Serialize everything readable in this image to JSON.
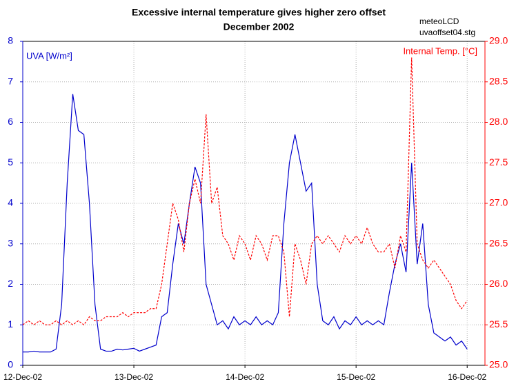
{
  "chart_data": {
    "type": "line",
    "title": "Excessive internal temperature gives higher zero offset",
    "subtitle": "December 2002",
    "annotations": [
      "meteoLCD",
      "uvaoffset04.stg"
    ],
    "ylabel": "UVA [W/m²]",
    "y2label": "Internal Temp. [°C]",
    "grid": true,
    "x": [
      0,
      0.05,
      0.1,
      0.15,
      0.2,
      0.25,
      0.3,
      0.35,
      0.4,
      0.45,
      0.5,
      0.55,
      0.6,
      0.65,
      0.7,
      0.75,
      0.8,
      0.85,
      0.9,
      0.95,
      1,
      1.05,
      1.1,
      1.15,
      1.2,
      1.25,
      1.3,
      1.35,
      1.4,
      1.45,
      1.5,
      1.55,
      1.6,
      1.65,
      1.7,
      1.75,
      1.8,
      1.85,
      1.9,
      1.95,
      2,
      2.05,
      2.1,
      2.15,
      2.2,
      2.25,
      2.3,
      2.35,
      2.4,
      2.45,
      2.5,
      2.55,
      2.6,
      2.65,
      2.7,
      2.75,
      2.8,
      2.85,
      2.9,
      2.95,
      3,
      3.05,
      3.1,
      3.15,
      3.2,
      3.25,
      3.3,
      3.35,
      3.4,
      3.45,
      3.5,
      3.55,
      3.6,
      3.65,
      3.7,
      3.75,
      3.8,
      3.85,
      3.9,
      3.95,
      4
    ],
    "xlim": [
      0,
      4.16
    ],
    "xticks": [
      {
        "value": 0,
        "label": "12-Dec-02"
      },
      {
        "value": 1,
        "label": "13-Dec-02"
      },
      {
        "value": 2,
        "label": "14-Dec-02"
      },
      {
        "value": 3,
        "label": "15-Dec-02"
      },
      {
        "value": 4,
        "label": "16-Dec-02"
      }
    ],
    "ylim": [
      0,
      8
    ],
    "yticks": [
      0,
      1,
      2,
      3,
      4,
      5,
      6,
      7,
      8
    ],
    "y2lim": [
      25,
      29
    ],
    "y2ticks": [
      {
        "value": 25,
        "label": "25.0"
      },
      25.5,
      {
        "value": 26,
        "label": "26.0"
      },
      26.5,
      {
        "value": 27,
        "label": "27.0"
      },
      27.5,
      {
        "value": 28,
        "label": "28.0"
      },
      28.5,
      {
        "value": 29,
        "label": "29.0"
      }
    ],
    "series": [
      {
        "name": "UVA",
        "color": "#0000cc",
        "values": [
          0.33,
          0.33,
          0.35,
          0.33,
          0.33,
          0.33,
          0.4,
          1.5,
          4.5,
          6.7,
          5.8,
          5.7,
          4.0,
          1.5,
          0.4,
          0.35,
          0.35,
          0.4,
          0.38,
          0.4,
          0.42,
          0.35,
          0.4,
          0.45,
          0.5,
          1.2,
          1.3,
          2.5,
          3.5,
          3.0,
          4.0,
          4.9,
          4.5,
          2.0,
          1.5,
          1.0,
          1.1,
          0.9,
          1.2,
          1.0,
          1.1,
          1.0,
          1.2,
          1.0,
          1.1,
          1.0,
          1.3,
          3.5,
          5.0,
          5.7,
          5.0,
          4.3,
          4.5,
          2.0,
          1.1,
          1.0,
          1.2,
          0.9,
          1.1,
          1.0,
          1.2,
          1.0,
          1.1,
          1.0,
          1.1,
          1.0,
          1.8,
          2.5,
          3.0,
          2.3,
          5.0,
          2.5,
          3.5,
          1.5,
          0.8,
          0.7,
          0.6,
          0.7,
          0.5,
          0.6,
          0.4
        ]
      },
      {
        "name": "Internal Temp.",
        "color": "#ff0000",
        "axis": "y2",
        "values": [
          25.5,
          25.55,
          25.5,
          25.55,
          25.5,
          25.5,
          25.55,
          25.5,
          25.55,
          25.5,
          25.55,
          25.5,
          25.6,
          25.55,
          25.55,
          25.6,
          25.6,
          25.6,
          25.65,
          25.6,
          25.65,
          25.65,
          25.65,
          25.7,
          25.7,
          26.0,
          26.5,
          27.0,
          26.8,
          26.4,
          27.0,
          27.3,
          27.0,
          28.1,
          27.0,
          27.2,
          26.6,
          26.5,
          26.3,
          26.6,
          26.5,
          26.3,
          26.6,
          26.5,
          26.3,
          26.6,
          26.6,
          26.4,
          25.6,
          26.5,
          26.3,
          26.0,
          26.5,
          26.6,
          26.5,
          26.6,
          26.5,
          26.4,
          26.6,
          26.5,
          26.6,
          26.5,
          26.7,
          26.5,
          26.4,
          26.4,
          26.5,
          26.2,
          26.6,
          26.4,
          28.8,
          26.5,
          26.3,
          26.2,
          26.3,
          26.2,
          26.1,
          26.0,
          25.8,
          25.7,
          25.8
        ]
      }
    ]
  }
}
